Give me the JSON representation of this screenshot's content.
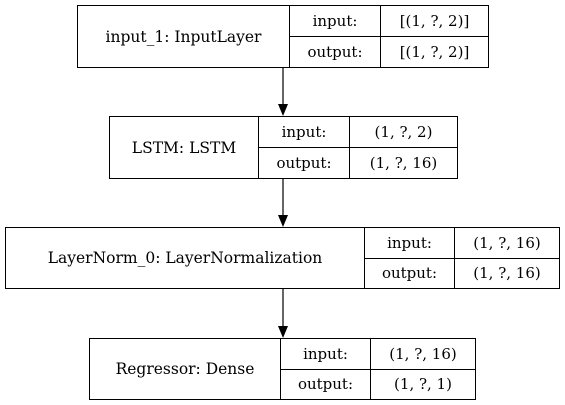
{
  "layers": [
    {
      "name": "input_1: InputLayer",
      "input_label": "input:",
      "input_value": "[(1, ?, 2)]",
      "output_label": "output:",
      "output_value": "[(1, ?, 2)]"
    },
    {
      "name": "LSTM: LSTM",
      "input_label": "input:",
      "input_value": "(1, ?, 2)",
      "output_label": "output:",
      "output_value": "(1, ?, 16)"
    },
    {
      "name": "LayerNorm_0: LayerNormalization",
      "input_label": "input:",
      "input_value": "(1, ?, 16)",
      "output_label": "output:",
      "output_value": "(1, ?, 16)"
    },
    {
      "name": "Regressor: Dense",
      "input_label": "input:",
      "input_value": "(1, ?, 16)",
      "output_label": "output:",
      "output_value": "(1, ?, 1)"
    }
  ]
}
